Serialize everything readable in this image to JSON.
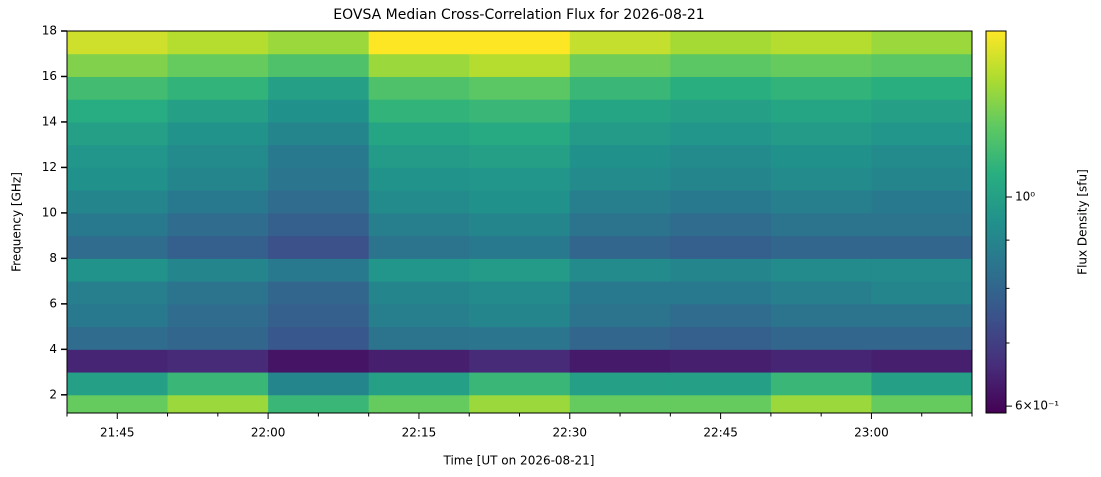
{
  "chart_data": {
    "type": "heatmap",
    "title": "EOVSA Median Cross-Correlation Flux for 2026-08-21",
    "xlabel": "Time [UT on 2026-08-21]",
    "ylabel": "Frequency [GHz]",
    "colorbar_label": "Flux Density [sfu]",
    "colormap": "viridis",
    "color_scale": "log",
    "x_bins": [
      "21:40",
      "21:50",
      "22:00",
      "22:10",
      "22:20",
      "22:30",
      "22:40",
      "22:50",
      "23:00",
      "23:10"
    ],
    "y_bins": [
      1.2,
      2,
      3,
      4,
      5,
      6,
      7,
      8,
      9,
      10,
      11,
      12,
      13,
      14,
      15,
      16,
      17,
      18
    ],
    "values": [
      [
        1.2,
        1.3,
        1.1,
        1.2,
        1.3,
        1.2,
        1.2,
        1.3,
        1.2
      ],
      [
        1.0,
        1.1,
        0.9,
        1.0,
        1.1,
        1.0,
        1.0,
        1.1,
        1.0
      ],
      [
        0.65,
        0.66,
        0.62,
        0.64,
        0.66,
        0.63,
        0.64,
        0.65,
        0.64
      ],
      [
        0.82,
        0.8,
        0.76,
        0.84,
        0.85,
        0.8,
        0.78,
        0.8,
        0.8
      ],
      [
        0.86,
        0.82,
        0.78,
        0.88,
        0.9,
        0.84,
        0.82,
        0.84,
        0.84
      ],
      [
        0.88,
        0.84,
        0.8,
        0.9,
        0.92,
        0.86,
        0.86,
        0.88,
        0.9
      ],
      [
        0.95,
        0.9,
        0.86,
        0.96,
        0.98,
        0.92,
        0.9,
        0.92,
        0.92
      ],
      [
        0.82,
        0.78,
        0.74,
        0.84,
        0.86,
        0.8,
        0.78,
        0.8,
        0.8
      ],
      [
        0.86,
        0.82,
        0.78,
        0.88,
        0.9,
        0.84,
        0.82,
        0.84,
        0.84
      ],
      [
        0.9,
        0.86,
        0.82,
        0.92,
        0.94,
        0.88,
        0.86,
        0.88,
        0.86
      ],
      [
        0.94,
        0.9,
        0.85,
        0.95,
        0.96,
        0.92,
        0.9,
        0.92,
        0.9
      ],
      [
        0.96,
        0.92,
        0.86,
        0.98,
        1.0,
        0.94,
        0.92,
        0.94,
        0.92
      ],
      [
        1.0,
        0.95,
        0.9,
        1.02,
        1.04,
        0.98,
        0.96,
        0.98,
        0.96
      ],
      [
        1.05,
        1.0,
        0.94,
        1.08,
        1.1,
        1.02,
        1.0,
        1.02,
        1.0
      ],
      [
        1.12,
        1.08,
        1.0,
        1.15,
        1.18,
        1.1,
        1.06,
        1.08,
        1.06
      ],
      [
        1.25,
        1.2,
        1.15,
        1.3,
        1.35,
        1.22,
        1.18,
        1.2,
        1.18
      ],
      [
        1.4,
        1.35,
        1.3,
        1.5,
        1.5,
        1.38,
        1.32,
        1.35,
        1.3
      ]
    ],
    "xlim": [
      "21:40",
      "23:10"
    ],
    "xticks": [
      "21:45",
      "22:00",
      "22:15",
      "22:30",
      "22:45",
      "23:00"
    ],
    "xminorticks": [
      "21:40",
      "21:50",
      "21:55",
      "22:05",
      "22:10",
      "22:20",
      "22:25",
      "22:35",
      "22:40",
      "22:50",
      "22:55",
      "23:05",
      "23:10"
    ],
    "ylim": [
      1.2,
      18
    ],
    "yticks": [
      2,
      4,
      6,
      8,
      10,
      12,
      14,
      16,
      18
    ],
    "clim": [
      0.59,
      1.5
    ],
    "cticks": [
      {
        "value": 1,
        "label": "10⁰"
      },
      {
        "value": 0.6,
        "label": "6×10⁻¹"
      }
    ],
    "cminorticks": [
      0.7,
      0.8,
      0.9
    ]
  }
}
